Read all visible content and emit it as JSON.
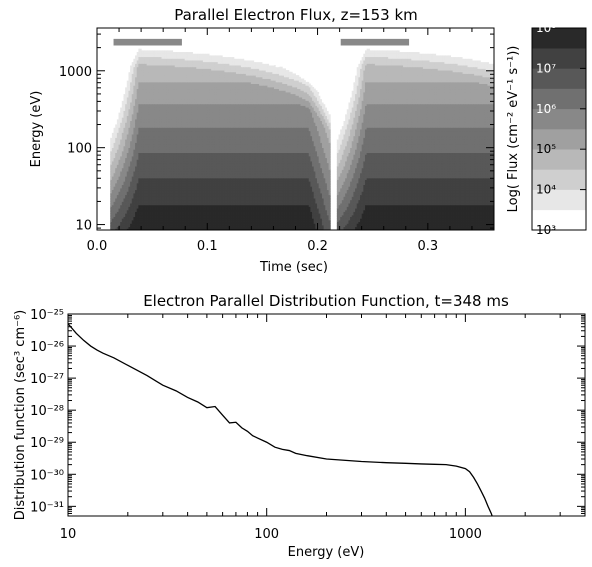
{
  "chart_data": [
    {
      "type": "heatmap",
      "title": "Parallel Electron Flux, z=153 km",
      "xlabel": "Time (sec)",
      "ylabel": "Energy (eV)",
      "xlim": [
        0.0,
        0.36
      ],
      "ylim": [
        8.5,
        3600
      ],
      "y_scale": "log",
      "x_ticks": [
        "0.0",
        "0.1",
        "0.2",
        "0.3"
      ],
      "x_tick_values": [
        0.0,
        0.1,
        0.2,
        0.3
      ],
      "y_ticks": [
        "10",
        "100",
        "1000"
      ],
      "y_tick_values": [
        10,
        100,
        1000
      ],
      "legend_position": "right",
      "periods": [
        {
          "start": 0.012,
          "end": 0.212,
          "max_energy": 2600
        },
        {
          "start": 0.218,
          "end": 0.418,
          "max_energy": 2600
        }
      ],
      "colorbar": {
        "label": "Log( Flux (cm⁻² eV⁻¹ s⁻¹))",
        "range": [
          3,
          8
        ],
        "ticks": [
          "10³",
          "10⁴",
          "10⁵",
          "10⁶",
          "10⁷",
          "10⁸"
        ],
        "tick_values": [
          3,
          4,
          5,
          6,
          7,
          8
        ],
        "levels": [
          3.0,
          3.5,
          4.0,
          4.5,
          5.0,
          5.5,
          6.0,
          6.5,
          7.0,
          7.5,
          8.0
        ]
      },
      "colors": {
        "white": "#ffffff",
        "dark": "#101010"
      }
    },
    {
      "type": "line",
      "title": "Electron Parallel Distribution Function, t=348 ms",
      "xlabel": "Energy (eV)",
      "ylabel": "Distribution function (sec³ cm⁻⁶)",
      "x_scale": "log",
      "y_scale": "log",
      "xlim": [
        10,
        4000
      ],
      "ylim": [
        5e-32,
        1e-25
      ],
      "x_ticks": [
        "10",
        "100",
        "1000"
      ],
      "x_tick_values": [
        10,
        100,
        1000
      ],
      "y_ticks": [
        "10⁻²⁵",
        "10⁻²⁶",
        "10⁻²⁷",
        "10⁻²⁸",
        "10⁻²⁹",
        "10⁻³⁰",
        "10⁻³¹"
      ],
      "y_tick_exponents": [
        -25,
        -26,
        -27,
        -28,
        -29,
        -30,
        -31
      ],
      "series": [
        {
          "x": [
            10,
            11,
            12,
            13,
            14,
            15,
            17,
            20,
            25,
            30,
            35,
            40,
            45,
            50,
            55,
            60,
            65,
            70,
            75,
            80,
            85,
            90,
            100,
            110,
            120,
            130,
            140,
            160,
            200,
            300,
            400,
            500,
            600,
            700,
            800,
            900,
            1000,
            1050,
            1100,
            1150,
            1200,
            1250,
            1300,
            1350,
            1380
          ],
          "y": [
            5e-26,
            2.5e-26,
            1.5e-26,
            1e-26,
            7.5e-27,
            6e-27,
            4.3e-27,
            2.5e-27,
            1.2e-27,
            6e-28,
            4e-28,
            2.5e-28,
            1.8e-28,
            1.2e-28,
            1.3e-28,
            7e-29,
            4e-29,
            4.2e-29,
            2.8e-29,
            2.2e-29,
            1.6e-29,
            1.35e-29,
            1e-29,
            7e-30,
            6e-30,
            5.5e-30,
            4.5e-30,
            3.8e-30,
            3e-30,
            2.5e-30,
            2.3e-30,
            2.2e-30,
            2.1e-30,
            2.05e-30,
            2e-30,
            1.8e-30,
            1.5e-30,
            1.2e-30,
            8e-31,
            5e-31,
            3e-31,
            1.8e-31,
            1e-31,
            6e-32,
            4e-32
          ]
        }
      ]
    }
  ]
}
